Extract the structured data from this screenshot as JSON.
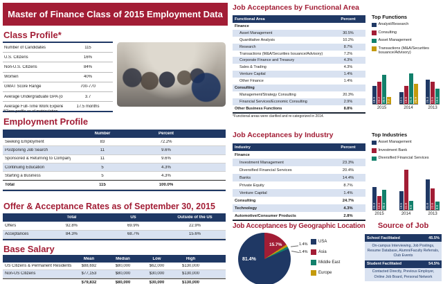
{
  "title": "Master of Finance Class of 2015 Employment Data",
  "colors": {
    "crimson": "#A21D35",
    "navy": "#1F3864",
    "light_row": "#D9E2F1",
    "teal": "#12806B",
    "gold": "#C49A0C"
  },
  "class_profile": {
    "heading": "Class Profile*",
    "rows": [
      [
        "Number of Candidates",
        "115"
      ],
      [
        "U.S. Citizens",
        "16%"
      ],
      [
        "Non-U.S. Citizens",
        "84%"
      ],
      [
        "Women",
        "40%"
      ],
      [
        "GMAT Score Range",
        "700-770"
      ],
      [
        "Average Undergraduate GPA (out of 4.0)",
        "3.7"
      ],
      [
        "Average Full-Time Work Experience",
        "17.5 months"
      ]
    ],
    "footnote": "*Class profile as of matriculation."
  },
  "employment_profile": {
    "heading": "Employment Profile",
    "columns": [
      "",
      "Number",
      "Percent"
    ],
    "rows": [
      {
        "label": "Seeking Employment",
        "number": "83",
        "percent": "72.2%",
        "bold": false
      },
      {
        "label": "Postponing Job Search",
        "number": "11",
        "percent": "9.6%",
        "bold": false
      },
      {
        "label": "Sponsored & Returning to Company",
        "number": "11",
        "percent": "9.6%",
        "bold": false
      },
      {
        "label": "Continuing Education",
        "number": "5",
        "percent": "4.3%",
        "bold": false
      },
      {
        "label": "Starting a Business",
        "number": "5",
        "percent": "4.3%",
        "bold": false
      },
      {
        "label": "Total",
        "number": "115",
        "percent": "100.0%",
        "bold": true
      }
    ]
  },
  "offer_acceptance": {
    "heading": "Offer & Acceptance Rates as of September 30, 2015",
    "columns": [
      "",
      "Total",
      "US",
      "Outside of the US"
    ],
    "rows": [
      {
        "label": "Offers",
        "values": [
          "92.8%",
          "69.9%",
          "22.9%"
        ]
      },
      {
        "label": "Acceptances",
        "values": [
          "84.3%",
          "68.7%",
          "15.6%"
        ]
      }
    ]
  },
  "base_salary": {
    "heading": "Base Salary",
    "columns": [
      "",
      "Mean",
      "Median",
      "Low",
      "High"
    ],
    "rows": [
      {
        "label": "US Citizens & Permanent Residents",
        "values": [
          "$88,692",
          "$80,000",
          "$62,000",
          "$130,000"
        ],
        "total": false
      },
      {
        "label": "Non-US Citizens",
        "values": [
          "$77,153",
          "$80,000",
          "$30,000",
          "$130,000"
        ],
        "total": false
      },
      {
        "label": "",
        "values": [
          "$79,832",
          "$80,000",
          "$30,000",
          "$130,000"
        ],
        "total": true
      }
    ]
  },
  "functional_area": {
    "heading": "Job Acceptances by Functional Area",
    "columns": [
      "Functional Area",
      "Percent"
    ],
    "rows": [
      {
        "label": "Finance",
        "percent": "",
        "type": "section",
        "shade": false
      },
      {
        "label": "Asset Management",
        "percent": "30.5%",
        "type": "item",
        "shade": true
      },
      {
        "label": "Quantitative Analysis",
        "percent": "10.2%",
        "type": "item",
        "shade": false
      },
      {
        "label": "Research",
        "percent": "8.7%",
        "type": "item",
        "shade": true
      },
      {
        "label": "Transactions (M&A/Securities Issuance/Advisory)",
        "percent": "7.2%",
        "type": "item",
        "shade": false
      },
      {
        "label": "Corporate Finance and Treasury",
        "percent": "4.3%",
        "type": "item",
        "shade": true
      },
      {
        "label": "Sales & Trading",
        "percent": "4.3%",
        "type": "item",
        "shade": false
      },
      {
        "label": "Venture Capital",
        "percent": "1.4%",
        "type": "item",
        "shade": true
      },
      {
        "label": "Other Finance",
        "percent": "1.4%",
        "type": "item",
        "shade": false
      },
      {
        "label": "Consulting",
        "percent": "",
        "type": "section",
        "shade": true
      },
      {
        "label": "Management/Strategy Consulting",
        "percent": "20.3%",
        "type": "item",
        "shade": false
      },
      {
        "label": "Financial Services/Economic Consulting",
        "percent": "2.9%",
        "type": "item",
        "shade": true
      },
      {
        "label": "Other Business Functions",
        "percent": "8.8%",
        "type": "total",
        "shade": false
      }
    ],
    "footnote": "*Functional areas were clarified and re-categorized in 2014."
  },
  "industry": {
    "heading": "Job Acceptances by Industry",
    "columns": [
      "Industry",
      "Percent"
    ],
    "rows": [
      {
        "label": "Finance",
        "percent": "",
        "type": "section",
        "shade": false
      },
      {
        "label": "Investment Management",
        "percent": "23.3%",
        "type": "item",
        "shade": true
      },
      {
        "label": "Diversified Financial Services",
        "percent": "20.4%",
        "type": "item",
        "shade": false
      },
      {
        "label": "Banks",
        "percent": "14.4%",
        "type": "item",
        "shade": true
      },
      {
        "label": "Private Equity",
        "percent": "8.7%",
        "type": "item",
        "shade": false
      },
      {
        "label": "Venture Capital",
        "percent": "1.4%",
        "type": "item",
        "shade": true
      },
      {
        "label": "Consulting",
        "percent": "24.7%",
        "type": "total",
        "shade": false
      },
      {
        "label": "Technology",
        "percent": "4.3%",
        "type": "total",
        "shade": true
      },
      {
        "label": "Automotive/Consumer Products",
        "percent": "2.8%",
        "type": "total",
        "shade": false
      }
    ]
  },
  "geographic": {
    "heading": "Job Acceptances by Geographic Location"
  },
  "top_functions_heading": "Top Functions",
  "top_industries_heading": "Top Industries",
  "source_of_job": {
    "heading": "Source of Job",
    "cards": [
      {
        "title": "School Facilitated",
        "percent": "45.5%",
        "detail": "On-campus Interviewing, Job Postings, Resume Database, Alumni/Faculty Referrals, Club Events"
      },
      {
        "title": "Student Facilitated",
        "percent": "54.5%",
        "detail": "Contacted Directly, Previous Employer, Online Job Board, Personal Network"
      }
    ]
  },
  "chart_data": [
    {
      "id": "geo_pie",
      "type": "pie",
      "title": "Job Acceptances by Geographic Location",
      "labels": [
        "USA",
        "Asia",
        "Middle East",
        "Europe"
      ],
      "values": [
        81.4,
        15.7,
        1.4,
        1.4
      ],
      "colors": [
        "navy",
        "crimson",
        "teal",
        "gold"
      ],
      "draw_order": [
        1,
        3,
        2,
        0
      ],
      "legend_position": "right"
    },
    {
      "id": "top_functions",
      "type": "bar",
      "title": "Top Functions",
      "categories": [
        "2015",
        "2014",
        "2013"
      ],
      "ylim": [
        0,
        34
      ],
      "series": [
        {
          "name": "Analyst/Research",
          "color": "navy",
          "values": [
            18.9,
            12.1,
            25.3
          ]
        },
        {
          "name": "Consulting",
          "color": "crimson",
          "values": [
            23.2,
            19.0,
            23.5
          ]
        },
        {
          "name": "Asset Management",
          "color": "teal",
          "values": [
            30.5,
            31.6,
            15.6
          ]
        },
        {
          "name": "Transactions (M&A/Securities Issuance/Advisory)",
          "color": "gold",
          "values": [
            7.2,
            20.9,
            null
          ]
        }
      ]
    },
    {
      "id": "top_industries",
      "type": "bar",
      "title": "Top Industries",
      "categories": [
        "2015",
        "2014",
        "2013"
      ],
      "ylim": [
        0,
        45
      ],
      "series": [
        {
          "name": "Asset Management",
          "color": "navy",
          "values": [
            23.3,
            19.5,
            31.8
          ]
        },
        {
          "name": "Investment Bank",
          "color": "crimson",
          "values": [
            14.4,
            41.8,
            22.0
          ]
        },
        {
          "name": "Diversified Financial Services",
          "color": "teal",
          "values": [
            20.4,
            9.0,
            8.8
          ]
        }
      ]
    }
  ]
}
